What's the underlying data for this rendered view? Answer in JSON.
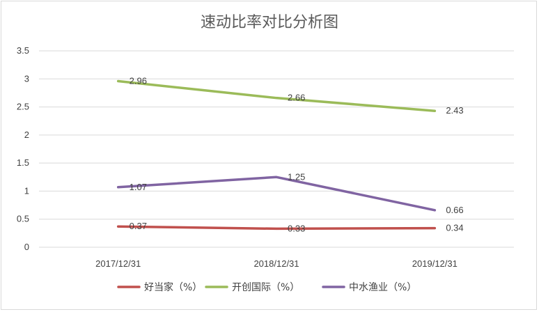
{
  "chart_data": {
    "type": "line",
    "title": "速动比率对比分析图",
    "categories": [
      "2017/12/31",
      "2018/12/31",
      "2019/12/31"
    ],
    "series": [
      {
        "name": "好当家（%）",
        "values": [
          0.37,
          0.33,
          0.34
        ],
        "color": "#c0504d"
      },
      {
        "name": "开创国际（%）",
        "values": [
          2.96,
          2.66,
          2.43
        ],
        "color": "#9bbb59"
      },
      {
        "name": "中水渔业（%）",
        "values": [
          1.07,
          1.25,
          0.66
        ],
        "color": "#8064a2"
      }
    ],
    "y_ticks": [
      "0",
      "0.5",
      "1",
      "1.5",
      "2",
      "2.5",
      "3",
      "3.5"
    ],
    "ylim": [
      0,
      3.5
    ],
    "grid": true,
    "legend_position": "bottom"
  }
}
